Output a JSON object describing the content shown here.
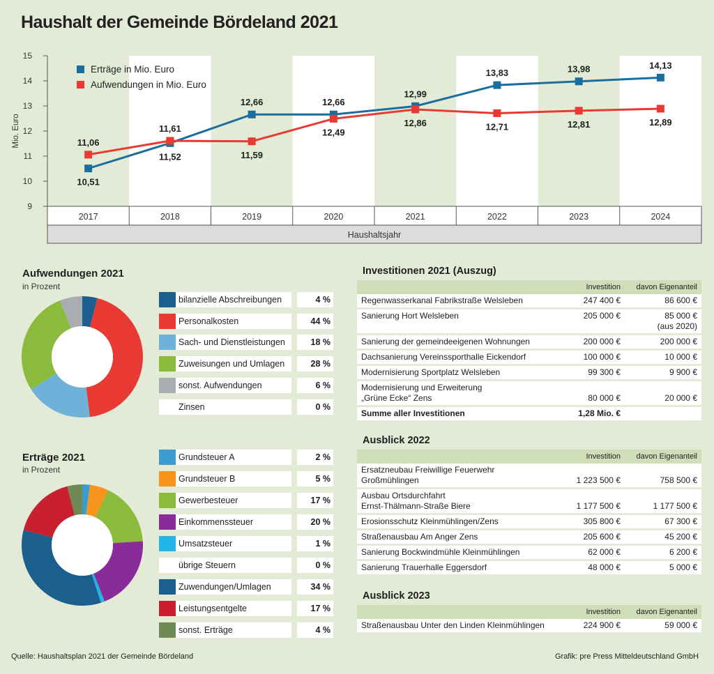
{
  "title": "Haushalt der Gemeinde Bördeland 2021",
  "colors": {
    "ertraege": "#1a6e9e",
    "aufwendungen": "#e83a32"
  },
  "chart_data": [
    {
      "type": "line",
      "title": "Haushalt der Gemeinde Bördeland 2021",
      "xlabel": "Haushaltsjahr",
      "ylabel": "Mio. Euro",
      "ylim": [
        9,
        15
      ],
      "yticks": [
        "9",
        "10",
        "11",
        "12",
        "13",
        "14",
        "15"
      ],
      "x": [
        "2017",
        "2018",
        "2019",
        "2020",
        "2021",
        "2022",
        "2023",
        "2024"
      ],
      "series": [
        {
          "name": "Erträge in Mio. Euro",
          "values": [
            10.51,
            11.52,
            12.66,
            12.66,
            12.99,
            13.83,
            13.98,
            14.13
          ],
          "labels": [
            "10,51",
            "11,52",
            "12,66",
            "12,66",
            "12,99",
            "13,83",
            "13,98",
            "14,13"
          ]
        },
        {
          "name": "Aufwendungen in Mio. Euro",
          "values": [
            11.06,
            11.61,
            11.59,
            12.49,
            12.86,
            12.71,
            12.81,
            12.89
          ],
          "labels": [
            "11,06",
            "11,61",
            "11,59",
            "12,49",
            "12,86",
            "12,71",
            "12,81",
            "12,89"
          ]
        }
      ]
    },
    {
      "type": "pie",
      "title": "Aufwendungen 2021",
      "subtitle": "in Prozent",
      "slices": [
        {
          "label": "bilanzielle Abschreibungen",
          "value": 4,
          "pct": "4 %",
          "color": "#1a5f8e"
        },
        {
          "label": "Personalkosten",
          "value": 44,
          "pct": "44 %",
          "color": "#e83a32"
        },
        {
          "label": "Sach- und Dienstleistungen",
          "value": 18,
          "pct": "18 %",
          "color": "#6fb2d9"
        },
        {
          "label": "Zuweisungen und Umlagen",
          "value": 28,
          "pct": "28 %",
          "color": "#8bbb3c"
        },
        {
          "label": "sonst. Aufwendungen",
          "value": 6,
          "pct": "6 %",
          "color": "#a9adb1"
        },
        {
          "label": "Zinsen",
          "value": 0,
          "pct": "0 %",
          "color": "#ffffff"
        }
      ]
    },
    {
      "type": "pie",
      "title": "Erträge 2021",
      "subtitle": "in Prozent",
      "slices": [
        {
          "label": "Grundsteuer A",
          "value": 2,
          "pct": "2 %",
          "color": "#3a9ccf"
        },
        {
          "label": "Grundsteuer B",
          "value": 5,
          "pct": "5 %",
          "color": "#f7941d"
        },
        {
          "label": "Gewerbesteuer",
          "value": 17,
          "pct": "17 %",
          "color": "#8bbb3c"
        },
        {
          "label": "Einkommenssteuer",
          "value": 20,
          "pct": "20 %",
          "color": "#8a2b9a"
        },
        {
          "label": "Umsatzsteuer",
          "value": 1,
          "pct": "1 %",
          "color": "#22b5e6"
        },
        {
          "label": "übrige Steuern",
          "value": 0,
          "pct": "0 %",
          "color": "#ffffff"
        },
        {
          "label": "Zuwendungen/Umlagen",
          "value": 34,
          "pct": "34 %",
          "color": "#1a5f8e"
        },
        {
          "label": "Leistungsentgelte",
          "value": 17,
          "pct": "17 %",
          "color": "#c8202e"
        },
        {
          "label": "sonst. Erträge",
          "value": 4,
          "pct": "4 %",
          "color": "#6f8a55"
        }
      ]
    },
    {
      "type": "table",
      "title": "Investitionen 2021 (Auszug)",
      "columns": [
        "",
        "Investition",
        "davon Eigenanteil"
      ],
      "rows": [
        {
          "name": "Regenwasserkanal Fabrikstraße Welsleben",
          "inv": "247 400 €",
          "own": "86 600 €"
        },
        {
          "name": "Sanierung Hort Welsleben",
          "inv": "205 000 €",
          "own": "85 000 €",
          "own2": "(aus 2020)"
        },
        {
          "name": "Sanierung der gemeindeeigenen Wohnungen",
          "inv": "200 000 €",
          "own": "200 000 €"
        },
        {
          "name": "Dachsanierung Vereinssporthalle Eickendorf",
          "inv": "100 000 €",
          "own": "10 000 €"
        },
        {
          "name": "Modernisierung Sportplatz Welsleben",
          "inv": "99 300 €",
          "own": "9 900 €"
        },
        {
          "name": "Modernisierung und Erweiterung",
          "name2": "„Grüne Ecke“ Zens",
          "inv": "80 000 €",
          "own": "20 000 €"
        },
        {
          "name": "Summe aller Investitionen",
          "inv": "1,28 Mio.  €",
          "own": "",
          "sum": true
        }
      ]
    },
    {
      "type": "table",
      "title": "Ausblick 2022",
      "columns": [
        "",
        "Investition",
        "davon Eigenanteil"
      ],
      "rows": [
        {
          "name": "Ersatzneubau Freiwillige Feuerwehr",
          "name2": "Großmühlingen",
          "inv": "1 223 500 €",
          "own": "758 500 €"
        },
        {
          "name": "Ausbau Ortsdurchfahrt",
          "name2": "Ernst-Thälmann-Straße Biere",
          "inv": "1 177 500 €",
          "own": "1 177 500 €"
        },
        {
          "name": "Erosionsschutz Kleinmühlingen/Zens",
          "inv": "305 800 €",
          "own": "67 300 €"
        },
        {
          "name": "Straßenausbau Am Anger Zens",
          "inv": "205 600 €",
          "own": "45 200 €"
        },
        {
          "name": "Sanierung Bockwindmühle Kleinmühlingen",
          "inv": "62 000 €",
          "own": "6 200 €"
        },
        {
          "name": "Sanierung Trauerhalle Eggersdorf",
          "inv": "48 000 €",
          "own": "5 000 €"
        }
      ]
    },
    {
      "type": "table",
      "title": "Ausblick 2023",
      "columns": [
        "",
        "Investition",
        "davon Eigenanteil"
      ],
      "rows": [
        {
          "name": "Straßenausbau Unter den Linden Kleinmühlingen",
          "inv": "224 900 €",
          "own": "59 000 €"
        }
      ]
    }
  ],
  "footer": {
    "source": "Quelle: Haushaltsplan 2021 der Gemeinde Bördeland",
    "credit": "Grafik: pre Press Mitteldeutschland GmbH"
  }
}
